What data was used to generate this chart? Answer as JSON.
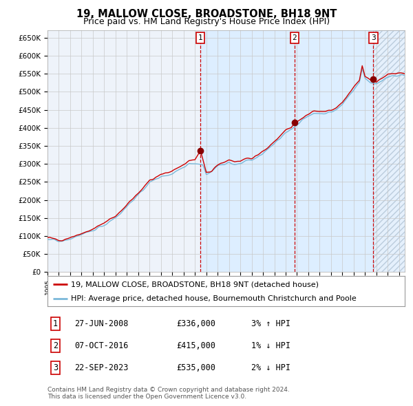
{
  "title": "19, MALLOW CLOSE, BROADSTONE, BH18 9NT",
  "subtitle": "Price paid vs. HM Land Registry's House Price Index (HPI)",
  "ylim": [
    0,
    670000
  ],
  "yticks": [
    0,
    50000,
    100000,
    150000,
    200000,
    250000,
    300000,
    350000,
    400000,
    450000,
    500000,
    550000,
    600000,
    650000
  ],
  "ytick_labels": [
    "£0",
    "£50K",
    "£100K",
    "£150K",
    "£200K",
    "£250K",
    "£300K",
    "£350K",
    "£400K",
    "£450K",
    "£500K",
    "£550K",
    "£600K",
    "£650K"
  ],
  "xlim_start": 1995.0,
  "xlim_end": 2026.5,
  "hpi_color": "#7ab8d9",
  "price_color": "#cc0000",
  "sale_dot_color": "#880000",
  "vline_color": "#cc0000",
  "shade_color": "#ddeeff",
  "legend_hpi_label": "HPI: Average price, detached house, Bournemouth Christchurch and Poole",
  "legend_price_label": "19, MALLOW CLOSE, BROADSTONE, BH18 9NT (detached house)",
  "sale1_x": 2008.49,
  "sale1_y": 336000,
  "sale1_label": "1",
  "sale1_date": "27-JUN-2008",
  "sale1_price": "£336,000",
  "sale1_note": "3% ↑ HPI",
  "sale2_x": 2016.77,
  "sale2_y": 415000,
  "sale2_label": "2",
  "sale2_date": "07-OCT-2016",
  "sale2_price": "£415,000",
  "sale2_note": "1% ↓ HPI",
  "sale3_x": 2023.73,
  "sale3_y": 535000,
  "sale3_label": "3",
  "sale3_date": "22-SEP-2023",
  "sale3_price": "£535,000",
  "sale3_note": "2% ↓ HPI",
  "footer": "Contains HM Land Registry data © Crown copyright and database right 2024.\nThis data is licensed under the Open Government Licence v3.0.",
  "bg_color": "#ffffff",
  "plot_bg_color": "#eef3fa",
  "grid_color": "#c8c8c8"
}
